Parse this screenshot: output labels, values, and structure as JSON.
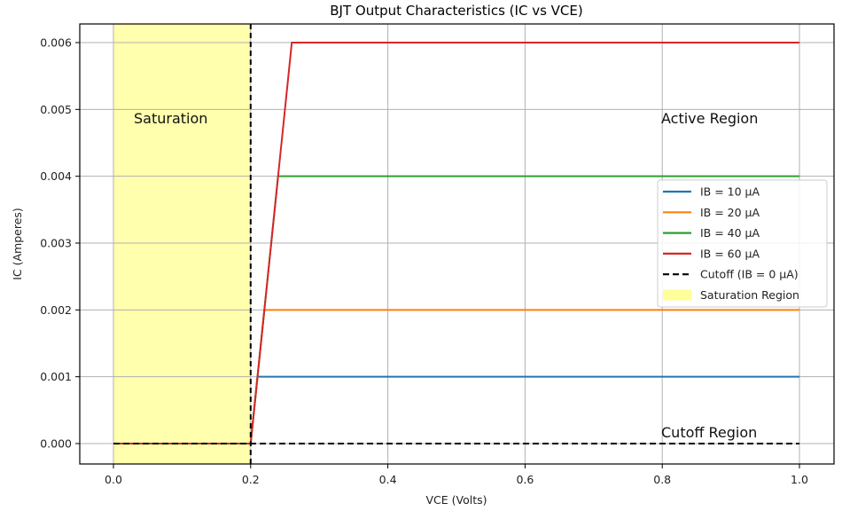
{
  "chart_data": {
    "type": "line",
    "title": "BJT Output Characteristics (IC vs VCE)",
    "xlabel": "VCE (Volts)",
    "ylabel": "IC (Amperes)",
    "xlim": [
      -0.05,
      1.05
    ],
    "ylim": [
      -0.0003,
      0.0063
    ],
    "xticks": [
      0.0,
      0.2,
      0.4,
      0.6,
      0.8,
      1.0
    ],
    "xtick_labels": [
      "0.0",
      "0.2",
      "0.4",
      "0.6",
      "0.8",
      "1.0"
    ],
    "yticks": [
      0.0,
      0.001,
      0.002,
      0.003,
      0.004,
      0.005,
      0.006
    ],
    "ytick_labels": [
      "0.000",
      "0.001",
      "0.002",
      "0.003",
      "0.004",
      "0.005",
      "0.006"
    ],
    "grid": true,
    "legend_position": "center right",
    "series": [
      {
        "name": "IB = 10 µA",
        "color": "#1f77b4",
        "style": "solid",
        "x": [
          0.0,
          0.2,
          0.21,
          1.0
        ],
        "y": [
          0.0,
          0.0,
          0.001,
          0.001
        ]
      },
      {
        "name": "IB = 20 µA",
        "color": "#ff7f0e",
        "style": "solid",
        "x": [
          0.0,
          0.2,
          0.22,
          1.0
        ],
        "y": [
          0.0,
          0.0,
          0.002,
          0.002
        ]
      },
      {
        "name": "IB = 40 µA",
        "color": "#2ca02c",
        "style": "solid",
        "x": [
          0.0,
          0.2,
          0.24,
          1.0
        ],
        "y": [
          0.0,
          0.0,
          0.004,
          0.004
        ]
      },
      {
        "name": "IB = 60 µA",
        "color": "#d62728",
        "style": "solid",
        "x": [
          0.0,
          0.2,
          0.26,
          1.0
        ],
        "y": [
          0.0,
          0.0,
          0.006,
          0.006
        ]
      },
      {
        "name": "Cutoff (IB = 0 µA)",
        "color": "#000000",
        "style": "dashed",
        "x": [
          0.0,
          1.0
        ],
        "y": [
          0.0,
          0.0
        ]
      }
    ],
    "shaded_regions": [
      {
        "name": "Saturation Region",
        "color": "#ffff99",
        "x_start": 0.0,
        "x_end": 0.2
      }
    ],
    "vlines": [
      {
        "x": 0.2,
        "color": "#000000",
        "style": "dashed"
      }
    ],
    "annotations": [
      {
        "text": "Saturation",
        "x": 0.03,
        "y": 0.0049
      },
      {
        "text": "Active Region",
        "x": 0.8,
        "y": 0.0049
      },
      {
        "text": "Cutoff Region",
        "x": 0.8,
        "y": 0.0002
      }
    ]
  },
  "legend": {
    "items": [
      {
        "label": "IB = 10 µA",
        "color": "#1f77b4",
        "kind": "line"
      },
      {
        "label": "IB = 20 µA",
        "color": "#ff7f0e",
        "kind": "line"
      },
      {
        "label": "IB = 40 µA",
        "color": "#2ca02c",
        "kind": "line"
      },
      {
        "label": "IB = 60 µA",
        "color": "#d62728",
        "kind": "line"
      },
      {
        "label": "Cutoff (IB = 0 µA)",
        "color": "#000000",
        "kind": "dashed"
      },
      {
        "label": "Saturation Region",
        "color": "#ffff99",
        "kind": "patch"
      }
    ]
  }
}
